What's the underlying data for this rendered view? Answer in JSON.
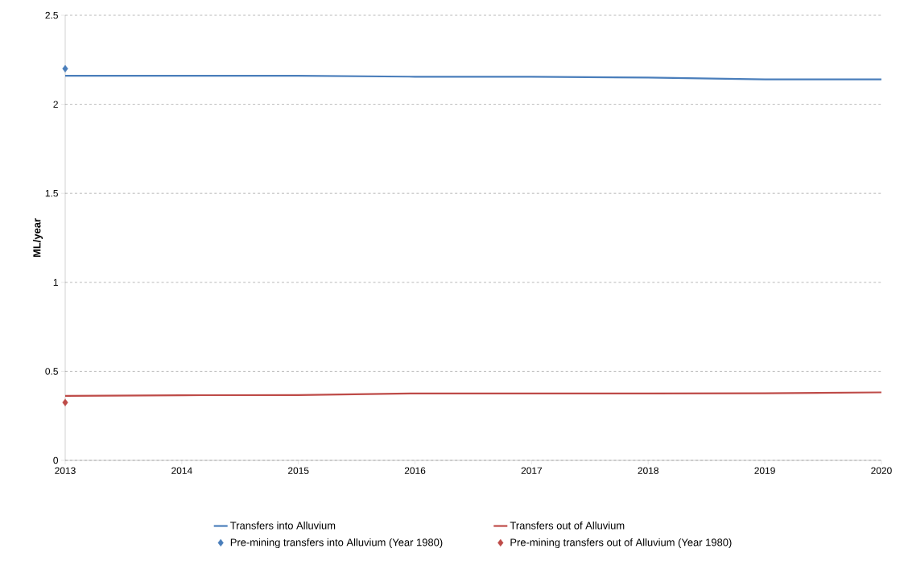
{
  "chart_data": {
    "type": "line",
    "ylabel": "ML/year",
    "x": [
      2013,
      2014,
      2015,
      2016,
      2017,
      2018,
      2019,
      2020
    ],
    "series": [
      {
        "name": "Transfers into Alluvium",
        "color": "#4a7ebb",
        "values": [
          2.16,
          2.16,
          2.16,
          2.155,
          2.155,
          2.15,
          2.14,
          2.14
        ]
      },
      {
        "name": "Transfers out of Alluvium",
        "color": "#be4b48",
        "values": [
          0.362,
          0.366,
          0.367,
          0.376,
          0.376,
          0.376,
          0.377,
          0.382
        ]
      },
      {
        "name": "Pre-mining transfers into Alluvium (Year 1980)",
        "type": "scatter",
        "marker": "diamond",
        "color": "#4a7ebb",
        "x": [
          2013
        ],
        "values": [
          2.2
        ]
      },
      {
        "name": "Pre-mining transfers out of Alluvium (Year 1980)",
        "type": "scatter",
        "marker": "diamond",
        "color": "#be4b48",
        "x": [
          2013
        ],
        "values": [
          0.325
        ]
      }
    ],
    "xlim": [
      2013,
      2020
    ],
    "ylim": [
      0,
      2.5
    ],
    "xticks": [
      2013,
      2014,
      2015,
      2016,
      2017,
      2018,
      2019,
      2020
    ],
    "yticks": [
      0,
      0.5,
      1,
      1.5,
      2,
      2.5
    ],
    "grid": "y",
    "legend": "bottom",
    "line_style": "solid"
  }
}
